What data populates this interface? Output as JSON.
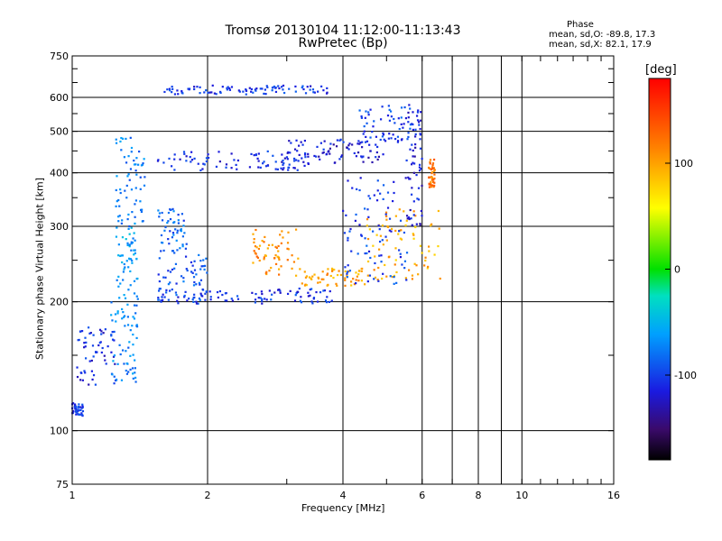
{
  "header": {
    "title_line1": "Tromsø 20130104 11:12:00-11:13:43",
    "title_line2": "RwPretec (Bp)",
    "phase_title": "Phase",
    "phase_line1": "mean, sd,O: -89.8, 17.3",
    "phase_line2": "mean, sd,X:  82.1, 17.9"
  },
  "colorbar": {
    "unit": "[deg]",
    "ticks": [
      "100",
      "0",
      "-100"
    ],
    "tick_values": [
      100,
      0,
      -100
    ],
    "range": [
      -180,
      180
    ]
  },
  "chart_data": {
    "type": "scatter",
    "title": "Tromsø 20130104 11:12:00-11:13:43",
    "subtitle": "RwPretec (Bp)",
    "xlabel": "Frequency [MHz]",
    "ylabel": "Stationary phase Virtual Height [km]",
    "xscale": "log",
    "yscale": "log",
    "xlim": [
      1,
      16
    ],
    "ylim": [
      75,
      750
    ],
    "x_ticks": [
      1,
      2,
      4,
      6,
      8,
      10,
      16
    ],
    "x_tick_labels": [
      "1",
      "2",
      "4",
      "6",
      "8",
      "10",
      "16"
    ],
    "x_minor_ticks": [
      7,
      9
    ],
    "y_ticks": [
      75,
      100,
      200,
      300,
      400,
      500,
      600,
      750
    ],
    "y_tick_labels": [
      "75",
      "100",
      "200",
      "300",
      "400",
      "500",
      "600",
      "750"
    ],
    "grid": true,
    "color_by": "phase [deg]",
    "traces": [
      {
        "x_range": [
          1.0,
          1.06
        ],
        "y_range": [
          108,
          116
        ],
        "phase": -105
      },
      {
        "x_range": [
          1.02,
          1.25
        ],
        "y_range": [
          128,
          175
        ],
        "phase": -110
      },
      {
        "x_range": [
          1.22,
          1.4
        ],
        "y_range": [
          130,
          200
        ],
        "phase": -70
      },
      {
        "x_range": [
          1.25,
          1.4
        ],
        "y_range": [
          200,
          300
        ],
        "phase": -60
      },
      {
        "x_range": [
          1.25,
          1.45
        ],
        "y_range": [
          300,
          490
        ],
        "phase": -75
      },
      {
        "x_range": [
          1.55,
          2.0
        ],
        "y_range": [
          200,
          260
        ],
        "phase": -90
      },
      {
        "x_range": [
          1.55,
          1.8
        ],
        "y_range": [
          260,
          330
        ],
        "phase": -85
      },
      {
        "x_range": [
          1.55,
          3.8
        ],
        "y_range": [
          198,
          215
        ],
        "phase": -105
      },
      {
        "x_range": [
          1.55,
          3.4
        ],
        "y_range": [
          405,
          450
        ],
        "phase": -110
      },
      {
        "x_range": [
          3.0,
          5.0
        ],
        "y_range": [
          420,
          480
        ],
        "phase": -115
      },
      {
        "x_range": [
          4.3,
          5.7
        ],
        "y_range": [
          470,
          580
        ],
        "phase": -100
      },
      {
        "x_range": [
          1.6,
          3.7
        ],
        "y_range": [
          610,
          640
        ],
        "phase": -105
      },
      {
        "x_range": [
          2.5,
          3.2
        ],
        "y_range": [
          230,
          295
        ],
        "phase": 110
      },
      {
        "x_range": [
          3.2,
          4.5
        ],
        "y_range": [
          218,
          240
        ],
        "phase": 100
      },
      {
        "x_range": [
          4.5,
          6.6
        ],
        "y_range": [
          225,
          330
        ],
        "phase": 95
      },
      {
        "x_range": [
          4.0,
          5.6
        ],
        "y_range": [
          220,
          400
        ],
        "phase": -100
      },
      {
        "x_range": [
          5.5,
          6.0
        ],
        "y_range": [
          300,
          560
        ],
        "phase": -115
      },
      {
        "x_range": [
          6.2,
          6.4
        ],
        "y_range": [
          370,
          430
        ],
        "phase": 120
      }
    ]
  }
}
